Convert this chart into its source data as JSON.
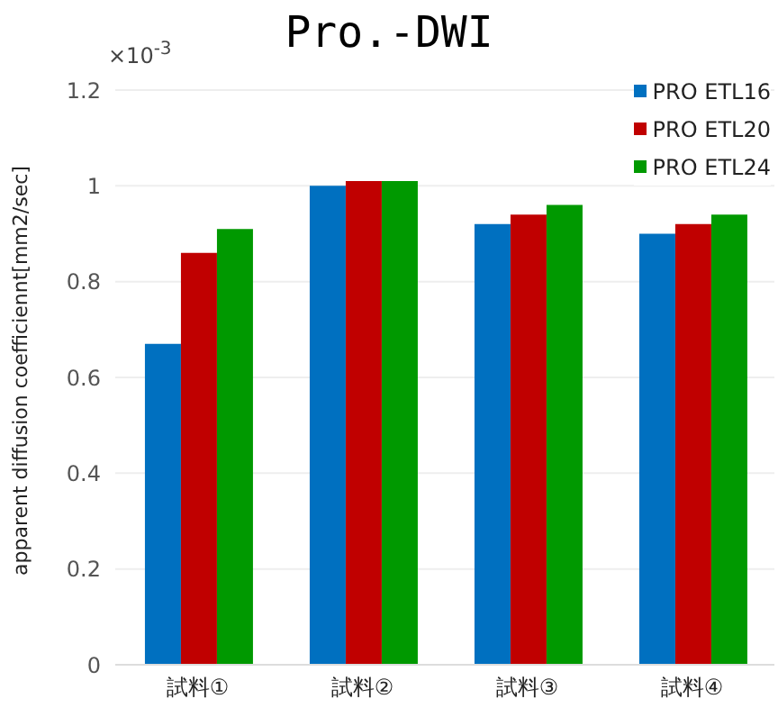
{
  "chart_data": {
    "type": "bar",
    "title": "Pro.-DWI",
    "ylabel": "apparent diffusion coefficiennt[mm2/sec]",
    "annotations": [
      "×10$^{-3}$"
    ],
    "categories": [
      "試料①",
      "試料②",
      "試料③",
      "試料④"
    ],
    "series": [
      {
        "name": "PRO ETL16",
        "color": "#0070c0",
        "values": [
          0.67,
          1.0,
          0.92,
          0.9
        ]
      },
      {
        "name": "PRO ETL20",
        "color": "#c00000",
        "values": [
          0.86,
          1.01,
          0.94,
          0.92
        ]
      },
      {
        "name": "PRO ETL24",
        "color": "#009900",
        "values": [
          0.91,
          1.01,
          0.96,
          0.94
        ]
      }
    ],
    "ylim": [
      0,
      1.2
    ],
    "yticks": [
      0,
      0.2,
      0.4,
      0.6,
      0.8,
      1,
      1.2
    ],
    "grid": "y",
    "legend": "top right"
  }
}
